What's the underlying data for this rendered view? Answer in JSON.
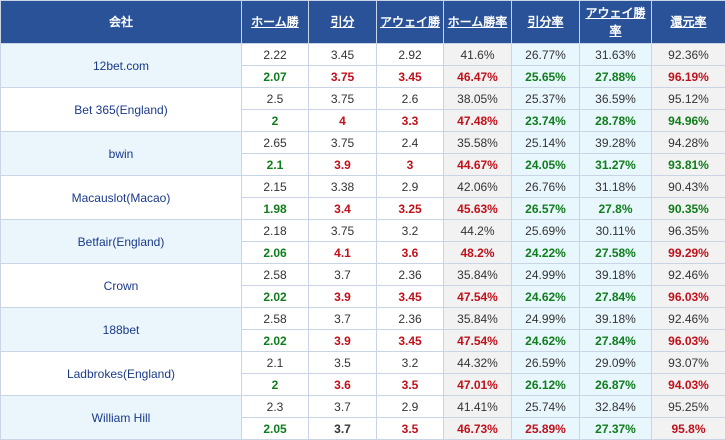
{
  "headers": [
    "会社",
    "ホーム勝",
    "引分",
    "アウェイ勝",
    "ホーム勝率",
    "引分率",
    "アウェイ勝率",
    "還元率"
  ],
  "colors": {
    "header_bg": "#2a5298",
    "up": "#0f7d1b",
    "down": "#c0101a"
  },
  "rows": [
    {
      "name": "12bet.com",
      "open": [
        "2.22",
        "3.45",
        "2.92",
        "41.6%",
        "26.77%",
        "31.63%",
        "92.36%"
      ],
      "live": [
        "2.07",
        "3.75",
        "3.45",
        "46.47%",
        "25.65%",
        "27.88%",
        "96.19%"
      ]
    },
    {
      "name": "Bet 365(England)",
      "open": [
        "2.5",
        "3.75",
        "2.6",
        "38.05%",
        "25.37%",
        "36.59%",
        "95.12%"
      ],
      "live": [
        "2",
        "4",
        "3.3",
        "47.48%",
        "23.74%",
        "28.78%",
        "94.96%"
      ]
    },
    {
      "name": "bwin",
      "open": [
        "2.65",
        "3.75",
        "2.4",
        "35.58%",
        "25.14%",
        "39.28%",
        "94.28%"
      ],
      "live": [
        "2.1",
        "3.9",
        "3",
        "44.67%",
        "24.05%",
        "31.27%",
        "93.81%"
      ]
    },
    {
      "name": "Macauslot(Macao)",
      "open": [
        "2.15",
        "3.38",
        "2.9",
        "42.06%",
        "26.76%",
        "31.18%",
        "90.43%"
      ],
      "live": [
        "1.98",
        "3.4",
        "3.25",
        "45.63%",
        "26.57%",
        "27.8%",
        "90.35%"
      ]
    },
    {
      "name": "Betfair(England)",
      "open": [
        "2.18",
        "3.75",
        "3.2",
        "44.2%",
        "25.69%",
        "30.11%",
        "96.35%"
      ],
      "live": [
        "2.06",
        "4.1",
        "3.6",
        "48.2%",
        "24.22%",
        "27.58%",
        "99.29%"
      ]
    },
    {
      "name": "Crown",
      "open": [
        "2.58",
        "3.7",
        "2.36",
        "35.84%",
        "24.99%",
        "39.18%",
        "92.46%"
      ],
      "live": [
        "2.02",
        "3.9",
        "3.45",
        "47.54%",
        "24.62%",
        "27.84%",
        "96.03%"
      ]
    },
    {
      "name": "188bet",
      "open": [
        "2.58",
        "3.7",
        "2.36",
        "35.84%",
        "24.99%",
        "39.18%",
        "92.46%"
      ],
      "live": [
        "2.02",
        "3.9",
        "3.45",
        "47.54%",
        "24.62%",
        "27.84%",
        "96.03%"
      ]
    },
    {
      "name": "Ladbrokes(England)",
      "open": [
        "2.1",
        "3.5",
        "3.2",
        "44.32%",
        "26.59%",
        "29.09%",
        "93.07%"
      ],
      "live": [
        "2",
        "3.6",
        "3.5",
        "47.01%",
        "26.12%",
        "26.87%",
        "94.03%"
      ]
    },
    {
      "name": "William Hill",
      "open": [
        "2.3",
        "3.7",
        "2.9",
        "41.41%",
        "25.74%",
        "32.84%",
        "95.25%"
      ],
      "live": [
        "2.05",
        "3.7",
        "3.5",
        "46.73%",
        "25.89%",
        "27.37%",
        "95.8%"
      ]
    }
  ]
}
